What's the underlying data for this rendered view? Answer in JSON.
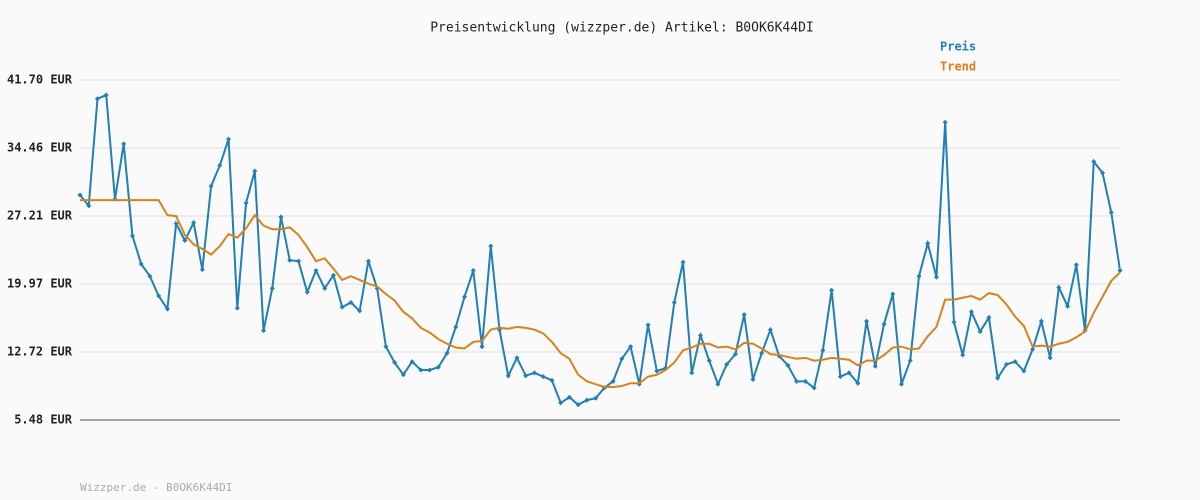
{
  "chart_data": {
    "type": "line",
    "title": "Preisentwicklung (wizzper.de) Artikel: B0OK6K44DI",
    "footer": "Wizzper.de - B0OK6K44DI",
    "ylim": [
      5.48,
      41.7
    ],
    "yticks": [
      {
        "value": 5.48,
        "label": "5.48 EUR"
      },
      {
        "value": 12.72,
        "label": "12.72 EUR"
      },
      {
        "value": 19.97,
        "label": "19.97 EUR"
      },
      {
        "value": 27.21,
        "label": "27.21 EUR"
      },
      {
        "value": 34.46,
        "label": "34.46 EUR"
      },
      {
        "value": 41.7,
        "label": "41.70 EUR"
      }
    ],
    "grid": true,
    "legend": "top-right",
    "series": [
      {
        "name": "Preis",
        "color": "#1f7fb6",
        "markers": true,
        "values": [
          29.45,
          28.3,
          39.7,
          40.1,
          29.0,
          34.9,
          25.1,
          22.1,
          20.8,
          18.7,
          17.3,
          26.4,
          24.6,
          26.5,
          21.5,
          30.4,
          32.6,
          35.4,
          17.4,
          28.6,
          32.0,
          15.0,
          19.5,
          27.1,
          22.5,
          22.4,
          19.1,
          21.4,
          19.5,
          20.9,
          17.5,
          18.0,
          17.1,
          22.4,
          19.5,
          13.3,
          11.6,
          10.3,
          11.7,
          10.8,
          10.8,
          11.1,
          12.6,
          15.4,
          18.6,
          21.4,
          13.3,
          24.0,
          15.1,
          10.2,
          12.1,
          10.2,
          10.5,
          10.1,
          9.7,
          7.3,
          7.9,
          7.1,
          7.6,
          7.8,
          8.9,
          9.6,
          12.0,
          13.3,
          9.3,
          15.6,
          10.7,
          11.0,
          18.0,
          22.3,
          10.5,
          14.5,
          11.8,
          9.3,
          11.4,
          12.5,
          16.7,
          9.8,
          12.6,
          15.1,
          12.3,
          11.3,
          9.6,
          9.6,
          8.9,
          12.9,
          19.3,
          10.1,
          10.5,
          9.4,
          16.0,
          11.2,
          15.7,
          18.9,
          9.3,
          11.8,
          20.8,
          24.3,
          20.7,
          37.2,
          15.9,
          12.4,
          17.0,
          14.9,
          16.4,
          9.95,
          11.4,
          11.7,
          10.7,
          13.0,
          16.0,
          12.1,
          19.6,
          17.6,
          22.0,
          15.0,
          33.0,
          31.8,
          27.6,
          21.4
        ]
      },
      {
        "name": "Trend",
        "color": "#d9821c",
        "markers": false,
        "values": [
          28.9,
          28.9,
          28.9,
          28.9,
          28.9,
          28.9,
          28.9,
          28.9,
          28.9,
          28.9,
          27.3,
          27.2,
          25.2,
          24.2,
          23.7,
          23.1,
          24.0,
          25.3,
          24.9,
          25.9,
          27.3,
          26.2,
          25.8,
          25.8,
          26.0,
          25.2,
          23.9,
          22.4,
          22.7,
          21.6,
          20.4,
          20.8,
          20.4,
          20.0,
          19.7,
          18.9,
          18.2,
          17.0,
          16.3,
          15.3,
          14.8,
          14.1,
          13.6,
          13.2,
          13.1,
          13.8,
          13.9,
          15.1,
          15.3,
          15.2,
          15.4,
          15.3,
          15.1,
          14.7,
          13.8,
          12.6,
          12.0,
          10.3,
          9.6,
          9.3,
          9.0,
          9.0,
          9.1,
          9.4,
          9.4,
          10.1,
          10.3,
          10.8,
          11.6,
          12.9,
          13.2,
          13.6,
          13.6,
          13.2,
          13.3,
          13.0,
          13.7,
          13.6,
          13.1,
          12.5,
          12.4,
          12.2,
          12.0,
          12.1,
          11.8,
          11.9,
          12.1,
          12.0,
          11.9,
          11.3,
          11.8,
          11.8,
          12.4,
          13.2,
          13.3,
          13.0,
          13.1,
          14.4,
          15.4,
          18.3,
          18.3,
          18.5,
          18.7,
          18.3,
          19.0,
          18.8,
          17.8,
          16.5,
          15.5,
          13.3,
          13.4,
          13.3,
          13.6,
          13.8,
          14.3,
          14.9,
          16.9,
          18.6,
          20.3,
          21.2
        ]
      }
    ]
  }
}
